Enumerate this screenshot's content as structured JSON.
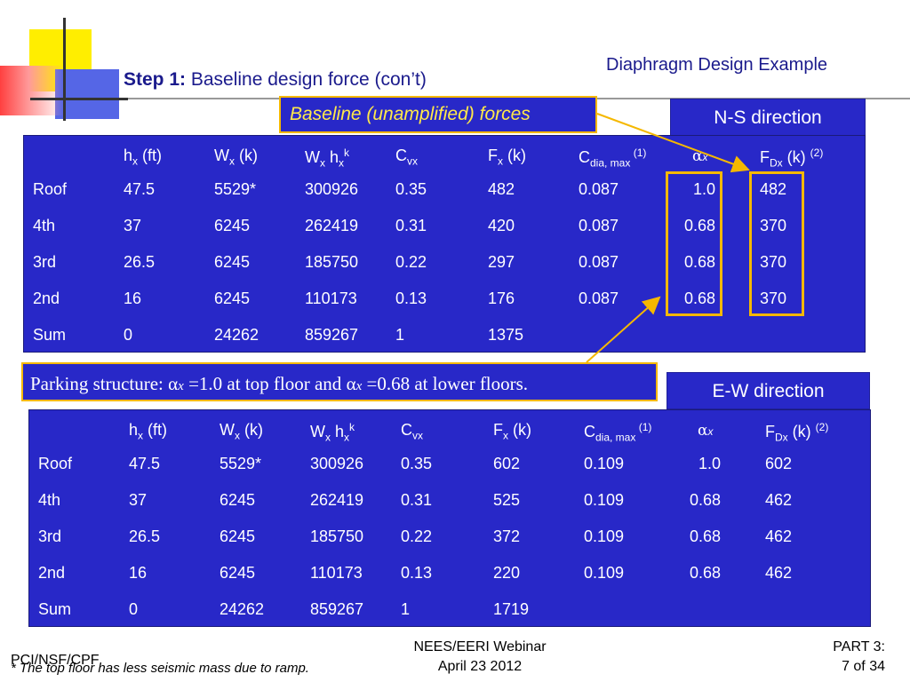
{
  "header": {
    "title": "Diaphragm Design Example",
    "step_label": "Step 1:",
    "step_text": " Baseline design force (con’t)"
  },
  "callouts": {
    "baseline": "Baseline (unamplified) forces",
    "parking_prefix": "Parking structure:  ",
    "parking_alpha1": "α",
    "parking_x": "x",
    "parking_mid": " =1.0 at top floor and ",
    "parking_alpha2": "α",
    "parking_x2": "x",
    "parking_suffix": " =0.68 at lower floors."
  },
  "directions": {
    "ns": "N-S direction",
    "ew": "E-W direction"
  },
  "headers": {
    "h_base": "h",
    "h_sub": "x",
    "h_unit": " (ft)",
    "w_base": "W",
    "w_sub": "x",
    "w_unit": " (k)",
    "wh_w": "W",
    "wh_sub1": "x",
    "wh_h": " h",
    "wh_sub2": "x",
    "wh_sup": "k",
    "c_base": "C",
    "c_sub": "vx",
    "f_base": "F",
    "f_sub": "x",
    "f_unit": " (k)",
    "cd_base": "C",
    "cd_sub": "dia, max",
    "cd_sup": " (1)",
    "alpha": "α",
    "alpha_sub": "x",
    "fd_base": "F",
    "fd_sub": "Dx",
    "fd_unit": " (k) ",
    "fd_sup": "(2)"
  },
  "ns_table": {
    "rows": [
      {
        "level": "Roof",
        "hx": "47.5",
        "wx": "5529*",
        "wxhx": "300926",
        "cvx": "0.35",
        "fx": "482",
        "cdia": "0.087",
        "alpha": "1.0",
        "fdx": "482"
      },
      {
        "level": "4th",
        "hx": "37",
        "wx": "6245",
        "wxhx": "262419",
        "cvx": "0.31",
        "fx": "420",
        "cdia": "0.087",
        "alpha": "0.68",
        "fdx": "370"
      },
      {
        "level": "3rd",
        "hx": "26.5",
        "wx": "6245",
        "wxhx": "185750",
        "cvx": "0.22",
        "fx": "297",
        "cdia": "0.087",
        "alpha": "0.68",
        "fdx": "370"
      },
      {
        "level": "2nd",
        "hx": "16",
        "wx": "6245",
        "wxhx": "110173",
        "cvx": "0.13",
        "fx": "176",
        "cdia": "0.087",
        "alpha": "0.68",
        "fdx": "370"
      },
      {
        "level": "Sum",
        "hx": "0",
        "wx": "24262",
        "wxhx": "859267",
        "cvx": "1",
        "fx": "1375",
        "cdia": "",
        "alpha": "",
        "fdx": ""
      }
    ]
  },
  "ew_table": {
    "rows": [
      {
        "level": "Roof",
        "hx": "47.5",
        "wx": "5529*",
        "wxhx": "300926",
        "cvx": "0.35",
        "fx": "602",
        "cdia": "0.109",
        "alpha": "1.0",
        "fdx": "602"
      },
      {
        "level": "4th",
        "hx": "37",
        "wx": "6245",
        "wxhx": "262419",
        "cvx": "0.31",
        "fx": "525",
        "cdia": "0.109",
        "alpha": "0.68",
        "fdx": "462"
      },
      {
        "level": "3rd",
        "hx": "26.5",
        "wx": "6245",
        "wxhx": "185750",
        "cvx": "0.22",
        "fx": "372",
        "cdia": "0.109",
        "alpha": "0.68",
        "fdx": "462"
      },
      {
        "level": "2nd",
        "hx": "16",
        "wx": "6245",
        "wxhx": "110173",
        "cvx": "0.13",
        "fx": "220",
        "cdia": "0.109",
        "alpha": "0.68",
        "fdx": "462"
      },
      {
        "level": "Sum",
        "hx": "0",
        "wx": "24262",
        "wxhx": "859267",
        "cvx": "1",
        "fx": "1719",
        "cdia": "",
        "alpha": "",
        "fdx": ""
      }
    ]
  },
  "footer": {
    "org": "PCI/NSF/CPF",
    "note": "* The top floor has less seismic mass due to ramp.",
    "event": "NEES/EERI Webinar",
    "date": "April 23 2012",
    "part": "PART 3:",
    "page": "7 of 34"
  },
  "colors": {
    "panel_blue": "#2828c8",
    "highlight_gold": "#f5b800",
    "title_navy": "#1a1a8c"
  }
}
